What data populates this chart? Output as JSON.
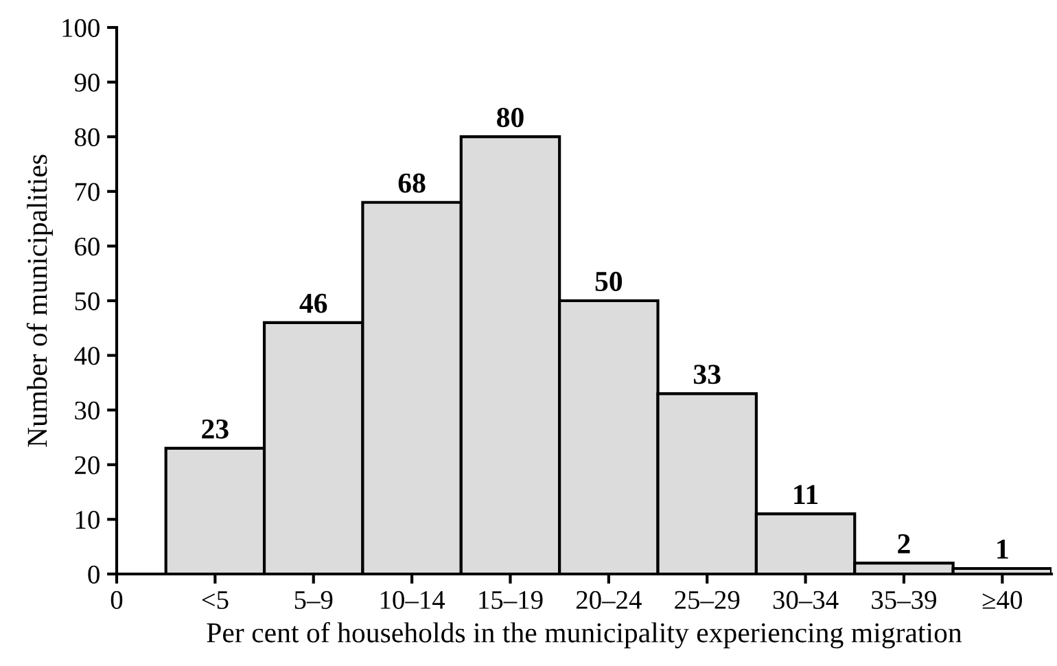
{
  "chart_data": {
    "type": "bar",
    "xlabel": "Per cent of households in the municipality experiencing migration",
    "ylabel": "Number of municipalities",
    "categories": [
      "0",
      "<5",
      "5–9",
      "10–14",
      "15–19",
      "20–24",
      "25–29",
      "30–34",
      "35–39",
      "≥40"
    ],
    "values": [
      null,
      23,
      46,
      68,
      80,
      50,
      33,
      11,
      2,
      1
    ],
    "color": "#dcdcdc",
    "ylim": [
      0,
      100
    ],
    "yticks": [
      0,
      10,
      20,
      30,
      40,
      50,
      60,
      70,
      80,
      90,
      100
    ],
    "data_labels": true,
    "grid": false,
    "legend": false
  }
}
